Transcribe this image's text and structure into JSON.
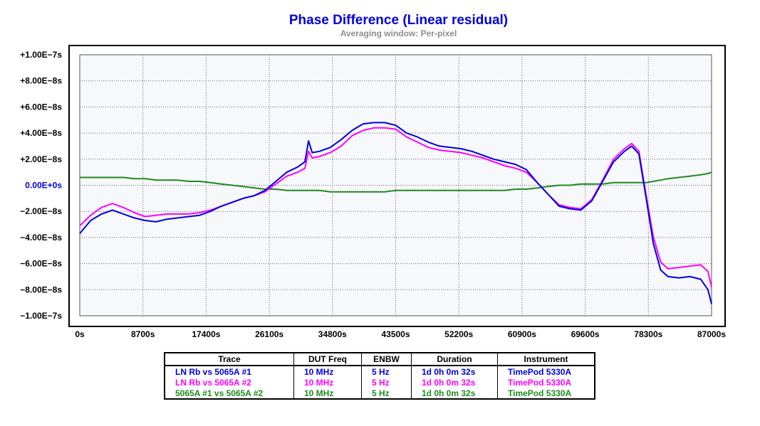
{
  "chart_data": {
    "type": "line",
    "title": "Phase Difference (Linear residual)",
    "subtitle": "Averaging window: Per-pixel",
    "xlabel": "",
    "ylabel": "",
    "xlim": [
      0,
      87000
    ],
    "ylim": [
      -1e-07,
      1e-07
    ],
    "grid": true,
    "x_ticks": [
      "0s",
      "8700s",
      "17400s",
      "26100s",
      "34800s",
      "43500s",
      "52200s",
      "60900s",
      "69600s",
      "78300s",
      "87000s"
    ],
    "y_ticks": [
      "+1.00E−7s",
      "+8.00E−8s",
      "+6.00E−8s",
      "+4.00E−8s",
      "+2.00E−8s",
      "0.00E+0s",
      "−2.00E−8s",
      "−4.00E−8s",
      "−6.00E−8s",
      "−8.00E−8s",
      "−1.00E−7s"
    ],
    "x": [
      0,
      1500,
      3000,
      4500,
      6000,
      7500,
      9000,
      10500,
      12000,
      13500,
      15000,
      16500,
      18000,
      19500,
      21000,
      22500,
      24000,
      25500,
      27000,
      28500,
      30000,
      31000,
      31500,
      32000,
      33000,
      34500,
      36000,
      37500,
      39000,
      40500,
      42000,
      43500,
      45000,
      46500,
      48000,
      49500,
      51000,
      52500,
      54000,
      55500,
      57000,
      58500,
      60000,
      61500,
      63000,
      64500,
      66000,
      67500,
      69000,
      70500,
      72000,
      73500,
      75000,
      76000,
      77000,
      78000,
      79000,
      80000,
      81000,
      82500,
      84000,
      85500,
      86500,
      87000
    ],
    "series": [
      {
        "name": "LN Rb vs 5065A #1",
        "color": "#0000e0",
        "values": [
          -3.7e-08,
          -2.7e-08,
          -2.2e-08,
          -1.9e-08,
          -2.2e-08,
          -2.5e-08,
          -2.7e-08,
          -2.8e-08,
          -2.6e-08,
          -2.5e-08,
          -2.4e-08,
          -2.3e-08,
          -2e-08,
          -1.6e-08,
          -1.3e-08,
          -1e-08,
          -8e-09,
          -4e-09,
          3e-09,
          1e-08,
          1.4e-08,
          1.8e-08,
          3.4e-08,
          2.5e-08,
          2.6e-08,
          2.9e-08,
          3.5e-08,
          4.2e-08,
          4.7e-08,
          4.8e-08,
          4.8e-08,
          4.6e-08,
          4e-08,
          3.7e-08,
          3.3e-08,
          3e-08,
          2.9e-08,
          2.8e-08,
          2.6e-08,
          2.3e-08,
          2e-08,
          1.8e-08,
          1.6e-08,
          1.2e-08,
          2e-09,
          -7e-09,
          -1.6e-08,
          -1.8e-08,
          -1.9e-08,
          -1.2e-08,
          3e-09,
          1.8e-08,
          2.6e-08,
          3e-08,
          2.4e-08,
          -1e-08,
          -4.5e-08,
          -6.5e-08,
          -7e-08,
          -7.1e-08,
          -7e-08,
          -7.2e-08,
          -8e-08,
          -9.1e-08
        ]
      },
      {
        "name": "LN Rb vs 5065A #2",
        "color": "#ff00ff",
        "values": [
          -3.1e-08,
          -2.3e-08,
          -1.7e-08,
          -1.4e-08,
          -1.7e-08,
          -2.1e-08,
          -2.4e-08,
          -2.3e-08,
          -2.2e-08,
          -2.2e-08,
          -2.2e-08,
          -2.1e-08,
          -1.9e-08,
          -1.6e-08,
          -1.3e-08,
          -1e-08,
          -8e-09,
          -5e-09,
          1e-09,
          7e-09,
          1e-08,
          1.3e-08,
          2.6e-08,
          2.1e-08,
          2.2e-08,
          2.5e-08,
          3e-08,
          3.8e-08,
          4.2e-08,
          4.4e-08,
          4.4e-08,
          4.3e-08,
          3.7e-08,
          3.3e-08,
          2.9e-08,
          2.7e-08,
          2.6e-08,
          2.5e-08,
          2.3e-08,
          2.1e-08,
          1.8e-08,
          1.5e-08,
          1.3e-08,
          1e-08,
          2e-09,
          -7e-09,
          -1.5e-08,
          -1.7e-08,
          -1.8e-08,
          -1.1e-08,
          4e-09,
          2e-08,
          2.8e-08,
          3.2e-08,
          2.6e-08,
          -8e-09,
          -4e-08,
          -5.9e-08,
          -6.4e-08,
          -6.3e-08,
          -6.2e-08,
          -6.1e-08,
          -6.6e-08,
          -7.8e-08
        ]
      },
      {
        "name": "5065A #1 vs 5065A #2",
        "color": "#1f8a1f",
        "values": [
          6e-09,
          6e-09,
          6e-09,
          6e-09,
          6e-09,
          5e-09,
          5e-09,
          4e-09,
          4e-09,
          4e-09,
          3e-09,
          3e-09,
          2e-09,
          1e-09,
          0,
          -1e-09,
          -2e-09,
          -3e-09,
          -3e-09,
          -4e-09,
          -4e-09,
          -4e-09,
          -4e-09,
          -4e-09,
          -4e-09,
          -5e-09,
          -5e-09,
          -5e-09,
          -5e-09,
          -5e-09,
          -5e-09,
          -4e-09,
          -4e-09,
          -4e-09,
          -4e-09,
          -4e-09,
          -4e-09,
          -4e-09,
          -4e-09,
          -4e-09,
          -4e-09,
          -4e-09,
          -3e-09,
          -3e-09,
          -2e-09,
          -1e-09,
          0,
          0,
          1e-09,
          1e-09,
          1e-09,
          2e-09,
          2e-09,
          2e-09,
          2e-09,
          2e-09,
          3e-09,
          4e-09,
          5e-09,
          6e-09,
          7e-09,
          8e-09,
          9e-09,
          1e-08
        ]
      }
    ]
  },
  "legend": {
    "headers": {
      "trace": "Trace",
      "freq": "DUT Freq",
      "enbw": "ENBW",
      "duration": "Duration",
      "instrument": "Instrument"
    },
    "rows": [
      {
        "color": "#0000e0",
        "trace": "LN Rb vs 5065A #1",
        "freq": "10 MHz",
        "enbw": "5 Hz",
        "duration": "1d 0h 0m 32s",
        "instrument": "TimePod 5330A"
      },
      {
        "color": "#ff00ff",
        "trace": "LN Rb vs 5065A #2",
        "freq": "10 MHz",
        "enbw": "5 Hz",
        "duration": "1d 0h 0m 32s",
        "instrument": "TimePod 5330A"
      },
      {
        "color": "#1f8a1f",
        "trace": "5065A #1 vs 5065A #2",
        "freq": "10 MHz",
        "enbw": "5 Hz",
        "duration": "1d 0h 0m 32s",
        "instrument": "TimePod 5330A"
      }
    ]
  }
}
